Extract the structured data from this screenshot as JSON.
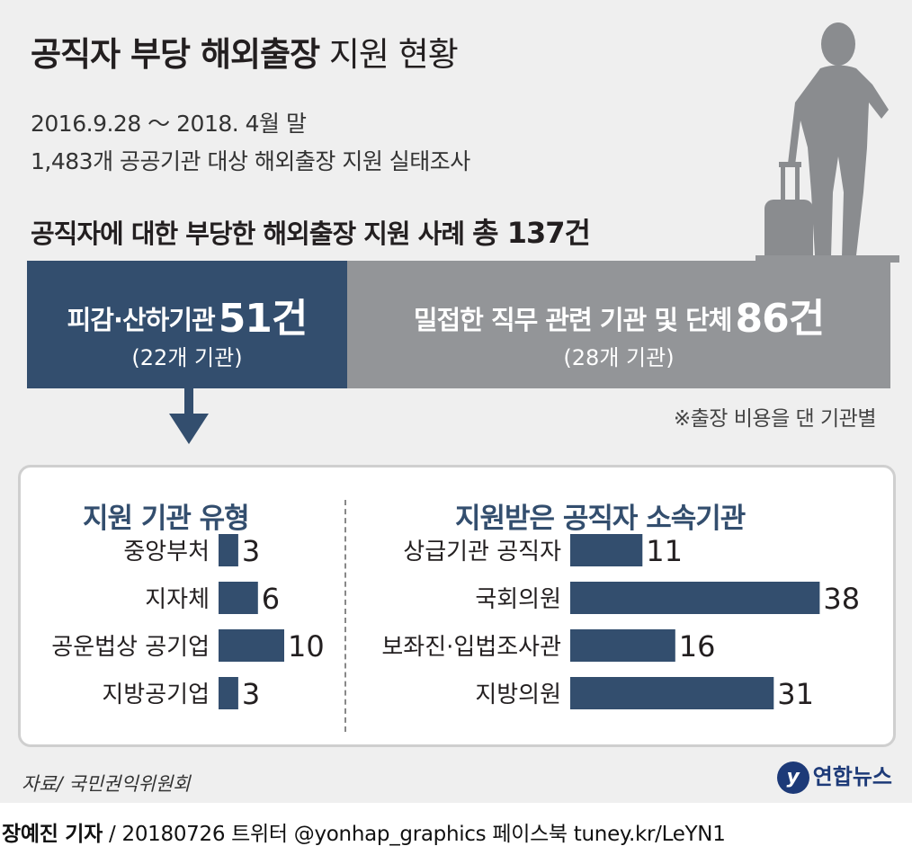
{
  "header": {
    "title_bold": "공직자 부당 해외출장",
    "title_light": "지원 현황",
    "period": "2016.9.28 ～ 2018. 4월 말",
    "scope": "1,483개 공공기관 대상 해외출장 지원 실태조사",
    "total_prefix": "공직자에 대한 부당한 해외출장 지원 사례",
    "total_value": "총 137건"
  },
  "summary": {
    "left": {
      "label": "피감·산하기관",
      "count": "51건",
      "sub": "(22개 기관)"
    },
    "right": {
      "label": "밀접한 직무 관련 기관 및 단체",
      "count": "86건",
      "sub": "(28개 기관)"
    },
    "note": "※출장 비용을 댄 기관별"
  },
  "colors": {
    "navy": "#334e6e",
    "gray": "#939598",
    "background": "#efefef"
  },
  "icons": [
    "traveler-silhouette-icon",
    "down-arrow-icon",
    "yonhap-logo-icon"
  ],
  "chart_data": [
    {
      "type": "bar",
      "orientation": "horizontal",
      "title": "지원 기관 유형",
      "categories": [
        "중앙부처",
        "지자체",
        "공운법상 공기업",
        "지방공기업"
      ],
      "values": [
        3,
        6,
        10,
        3
      ]
    },
    {
      "type": "bar",
      "orientation": "horizontal",
      "title": "지원받은 공직자 소속기관",
      "categories": [
        "상급기관 공직자",
        "국회의원",
        "보좌진·입법조사관",
        "지방의원"
      ],
      "values": [
        11,
        38,
        16,
        31
      ]
    }
  ],
  "footer": {
    "source": "자료/ 국민권익위원회",
    "logo_mark": "y",
    "logo_text": "연합뉴스",
    "credit_reporter": "장예진 기자",
    "credit_rest": "/ 20180726 트위터 @yonhap_graphics  페이스북 tuney.kr/LeYN1"
  }
}
